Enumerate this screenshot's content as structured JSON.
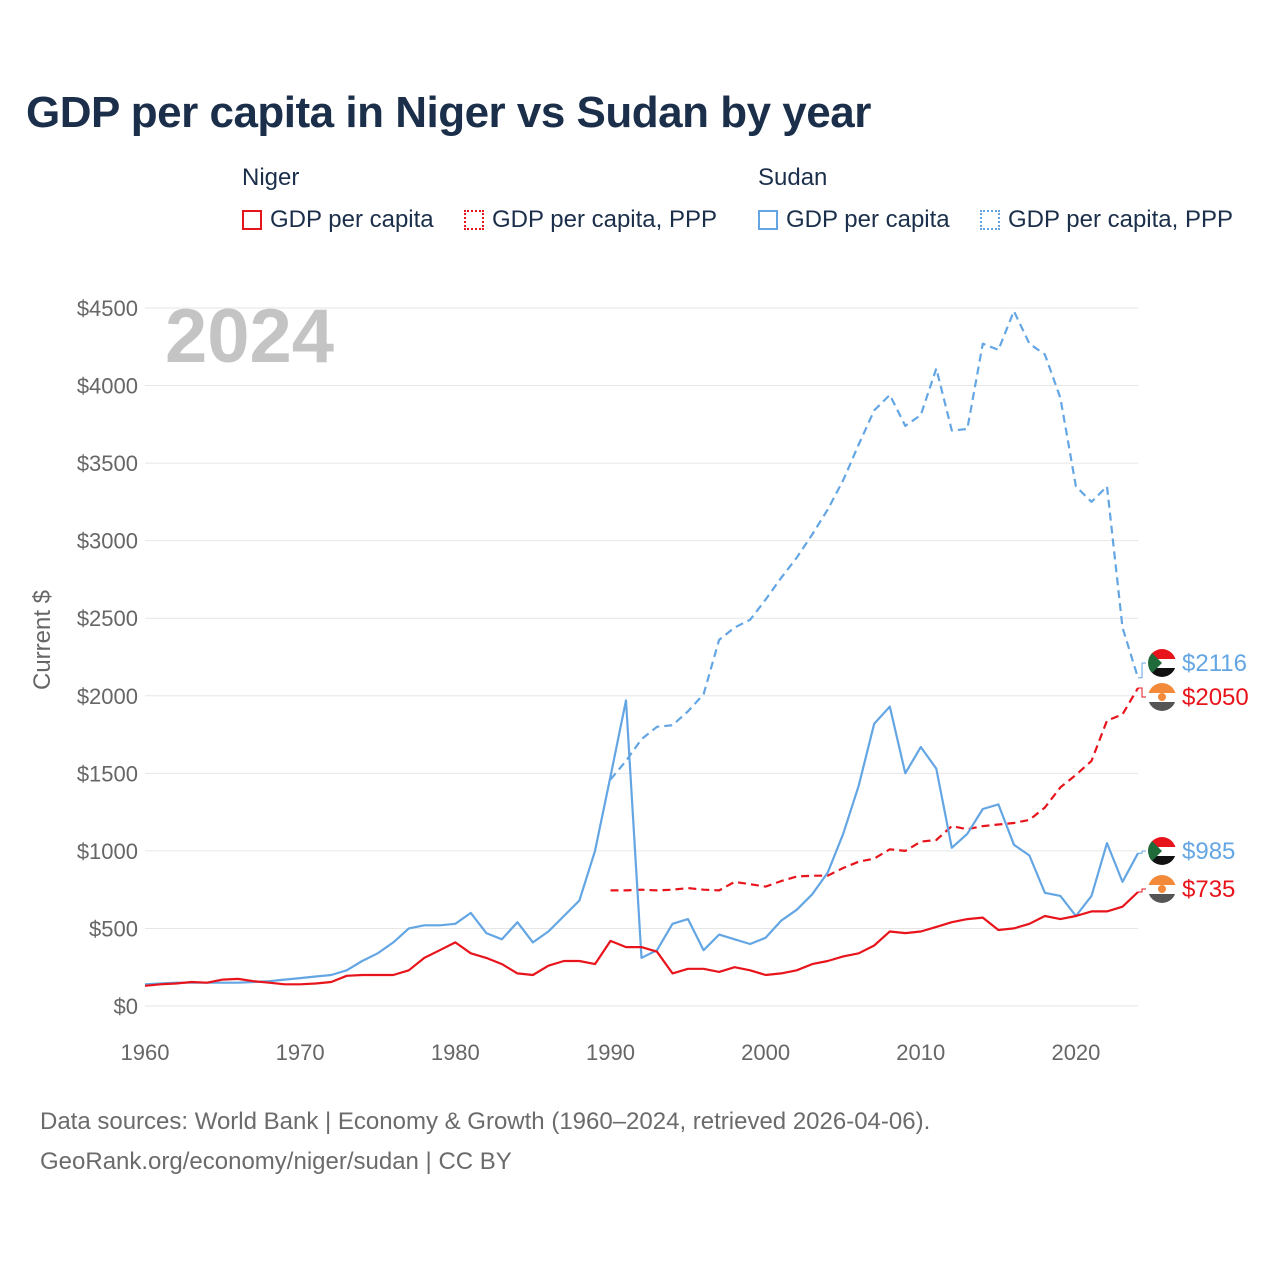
{
  "title": "GDP per capita in Niger vs Sudan by year",
  "legend": {
    "groups": [
      {
        "name": "Niger",
        "items": [
          {
            "label": "GDP per capita",
            "color": "#e8141c",
            "style": "solid"
          },
          {
            "label": "GDP per capita, PPP",
            "color": "#e8141c",
            "style": "dotted"
          }
        ]
      },
      {
        "name": "Sudan",
        "items": [
          {
            "label": "GDP per capita",
            "color": "#64a6e3",
            "style": "solid"
          },
          {
            "label": "GDP per capita, PPP",
            "color": "#64a6e3",
            "style": "dotted"
          }
        ]
      }
    ]
  },
  "footer": {
    "line1": "Data sources: World Bank | Economy & Growth (1960–2024, retrieved 2026-04-06).",
    "line2": "GeoRank.org/economy/niger/sudan | CC BY"
  },
  "chart_data": {
    "type": "line",
    "year_label": "2024",
    "ylabel": "Current $",
    "xlim": [
      1960,
      2024
    ],
    "ylim": [
      0,
      4500
    ],
    "x_ticks": [
      1960,
      1970,
      1980,
      1990,
      2000,
      2010,
      2020
    ],
    "y_ticks": [
      {
        "value": 0,
        "label": "$0"
      },
      {
        "value": 500,
        "label": "$500"
      },
      {
        "value": 1000,
        "label": "$1000"
      },
      {
        "value": 1500,
        "label": "$1500"
      },
      {
        "value": 2000,
        "label": "$2000"
      },
      {
        "value": 2500,
        "label": "$2500"
      },
      {
        "value": 3000,
        "label": "$3000"
      },
      {
        "value": 3500,
        "label": "$3500"
      },
      {
        "value": 4000,
        "label": "$4000"
      },
      {
        "value": 4500,
        "label": "$4500"
      }
    ],
    "series": [
      {
        "name": "Sudan GDP per capita, PPP",
        "color": "#64a6e3",
        "dash": "dashed",
        "x_start": 1990,
        "values": [
          1460,
          1580,
          1720,
          1800,
          1810,
          1900,
          2010,
          2360,
          2440,
          2490,
          2620,
          2760,
          2890,
          3040,
          3200,
          3390,
          3620,
          3840,
          3940,
          3740,
          3810,
          4110,
          3710,
          3720,
          4270,
          4230,
          4480,
          4270,
          4200,
          3920,
          3350,
          3250,
          3350,
          2440,
          2116
        ],
        "end_label": "$2116",
        "end_value": 2116
      },
      {
        "name": "Niger GDP per capita, PPP",
        "color": "#e8141c",
        "dash": "dashed",
        "x_start": 1990,
        "values": [
          745,
          745,
          750,
          745,
          750,
          760,
          750,
          745,
          800,
          785,
          770,
          805,
          835,
          840,
          840,
          890,
          930,
          950,
          1010,
          1000,
          1060,
          1070,
          1160,
          1140,
          1160,
          1170,
          1180,
          1200,
          1280,
          1410,
          1490,
          1580,
          1840,
          1880,
          2050
        ],
        "end_label": "$2050",
        "end_value": 2050
      },
      {
        "name": "Sudan GDP per capita",
        "color": "#64a6e3",
        "dash": "solid",
        "x_start": 1960,
        "values": [
          140,
          145,
          150,
          150,
          150,
          150,
          150,
          155,
          160,
          170,
          180,
          190,
          200,
          230,
          290,
          340,
          410,
          500,
          520,
          520,
          530,
          600,
          470,
          430,
          540,
          410,
          480,
          580,
          680,
          1000,
          1480,
          1970,
          310,
          360,
          530,
          560,
          360,
          460,
          430,
          400,
          440,
          550,
          620,
          720,
          860,
          1110,
          1420,
          1820,
          1930,
          1500,
          1670,
          1530,
          1020,
          1110,
          1270,
          1300,
          1040,
          970,
          730,
          710,
          580,
          710,
          1050,
          800,
          985
        ],
        "end_label": "$985",
        "end_value": 985
      },
      {
        "name": "Niger GDP per capita",
        "color": "#e8141c",
        "dash": "solid",
        "x_start": 1960,
        "values": [
          130,
          140,
          145,
          155,
          150,
          170,
          175,
          160,
          150,
          140,
          140,
          145,
          155,
          195,
          200,
          200,
          200,
          230,
          310,
          360,
          410,
          340,
          310,
          270,
          210,
          200,
          260,
          290,
          290,
          270,
          420,
          380,
          380,
          350,
          210,
          240,
          240,
          220,
          250,
          230,
          200,
          210,
          230,
          270,
          290,
          320,
          340,
          390,
          480,
          470,
          480,
          510,
          540,
          560,
          570,
          490,
          500,
          530,
          580,
          560,
          580,
          610,
          610,
          640,
          735
        ],
        "end_label": "$735",
        "end_value": 735
      }
    ]
  }
}
